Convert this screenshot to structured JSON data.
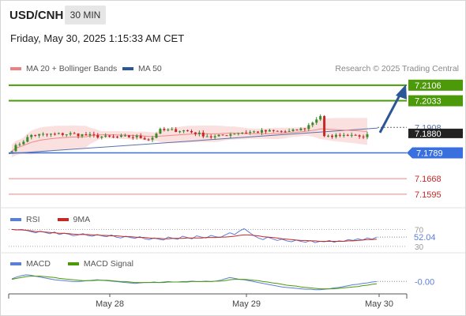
{
  "header": {
    "symbol": "USD/CNH",
    "timeframe": "30 MIN",
    "datetime": "Friday, May 30, 2025 1:15:33 AM CET",
    "research": "Research © 2025 Trading Central"
  },
  "colors": {
    "green_level": "#4c9a0a",
    "blue_level": "#3a6fe0",
    "red_level": "#f08080",
    "arrow": "#2b5797",
    "bull": "#3a8a2a",
    "bear": "#c62828",
    "bb": "#f7c6c6",
    "ma20": "#f08888",
    "ma50": "#5872a8",
    "rsi": "#5b7fd6",
    "rsi_ma": "#c62828",
    "macd": "#5b7fd6",
    "macd_signal": "#4c9a0a"
  },
  "chart_data": [
    {
      "type": "candlestick",
      "legend": [
        {
          "name": "MA 20 + Bollinger Bands",
          "color": "#f08080"
        },
        {
          "name": "MA 50",
          "color": "#2b5797"
        }
      ],
      "x_ticks": [
        "May 28",
        "May 29",
        "May 30"
      ],
      "ylim": [
        7.155,
        7.2135
      ],
      "levels": [
        {
          "value": 7.2106,
          "label": "7.2106",
          "kind": "resistance"
        },
        {
          "value": 7.2033,
          "label": "7.2033",
          "kind": "resistance"
        },
        {
          "value": 7.1908,
          "label": "7.1908",
          "kind": "pivot"
        },
        {
          "value": 7.1789,
          "label": "7.1789",
          "kind": "pivot-support"
        },
        {
          "value": 7.1668,
          "label": "7.1668",
          "kind": "support"
        },
        {
          "value": 7.1595,
          "label": "7.1595",
          "kind": "support"
        }
      ],
      "last_price": 7.188,
      "last_price_label": "7.1880",
      "forecast_target": 7.2106,
      "ma50_start": 7.1785,
      "ma50_end": 7.1905
    },
    {
      "type": "line",
      "panel": "RSI",
      "series": [
        {
          "name": "RSI",
          "color": "#5b7fd6",
          "values": [
            70,
            69,
            70,
            68,
            65,
            62,
            66,
            63,
            60,
            64,
            58,
            61,
            59,
            55,
            57,
            60,
            56,
            54,
            58,
            55,
            53,
            57,
            52,
            50,
            54,
            51,
            49,
            53,
            48,
            46,
            50,
            47,
            45,
            52,
            49,
            47,
            54,
            51,
            48,
            55,
            52,
            50,
            56,
            53,
            51,
            57,
            62,
            58,
            66,
            72,
            64,
            56,
            50,
            46,
            52,
            48,
            44,
            47,
            43,
            41,
            45,
            42,
            40,
            44,
            39,
            42,
            41,
            44,
            40,
            43,
            42,
            46,
            44,
            48,
            45,
            50,
            47,
            52
          ]
        },
        {
          "name": "9MA",
          "color": "#c62828",
          "values": [
            70,
            69,
            69,
            68,
            67,
            65,
            65,
            64,
            63,
            62,
            61,
            61,
            60,
            59,
            58,
            58,
            58,
            57,
            57,
            56,
            56,
            55,
            55,
            54,
            53,
            53,
            52,
            51,
            51,
            50,
            49,
            49,
            48,
            48,
            49,
            49,
            49,
            50,
            50,
            50,
            50,
            51,
            51,
            51,
            52,
            52,
            53,
            54,
            56,
            57,
            57,
            56,
            55,
            53,
            52,
            51,
            50,
            48,
            47,
            46,
            45,
            44,
            44,
            43,
            43,
            42,
            42,
            42,
            42,
            42,
            42,
            43,
            43,
            44,
            45,
            46,
            46,
            47
          ]
        }
      ],
      "reference_lines": [
        70,
        30
      ],
      "last_value_label": "52.04",
      "ylim": [
        28,
        82
      ]
    },
    {
      "type": "line",
      "panel": "MACD",
      "series": [
        {
          "name": "MACD",
          "color": "#5b7fd6",
          "values": [
            0.0004,
            0.0008,
            0.0011,
            0.0013,
            0.0012,
            0.001,
            0.0008,
            0.0006,
            0.0004,
            0.0002,
            0.0001,
            0.0,
            -0.0001,
            -0.0002,
            -0.0002,
            -0.0001,
            0.0,
            0.0001,
            0.0002,
            0.0001,
            0.0,
            -0.0001,
            -0.0002,
            -0.0003,
            -0.0004,
            -0.0005,
            -0.0006,
            -0.0005,
            -0.0004,
            -0.0004,
            -0.0003,
            -0.0004,
            -0.0003,
            -0.0002,
            -0.0003,
            -0.0003,
            -0.0002,
            -0.0002,
            -0.0001,
            -0.0002,
            -0.0002,
            -0.0001,
            -0.0002,
            -0.0001,
            0.0001,
            0.0004,
            0.0007,
            0.0005,
            0.0003,
            0.0002,
            0.0,
            -0.0002,
            -0.0004,
            -0.0006,
            -0.0008,
            -0.001,
            -0.0012,
            -0.0014,
            -0.0015,
            -0.0016,
            -0.0017,
            -0.0018,
            -0.0019,
            -0.0019,
            -0.002,
            -0.002,
            -0.0019,
            -0.0018,
            -0.0016,
            -0.0015,
            -0.0013,
            -0.0011,
            -0.0009,
            -0.0008,
            -0.0006,
            -0.0005,
            -0.0003,
            -0.0002
          ]
        },
        {
          "name": "MACD Signal",
          "color": "#4c9a0a",
          "values": [
            0.0003,
            0.0005,
            0.0007,
            0.0009,
            0.001,
            0.001,
            0.001,
            0.0009,
            0.0008,
            0.0007,
            0.0005,
            0.0004,
            0.0003,
            0.0002,
            0.0001,
            0.0,
            0.0,
            0.0,
            0.0001,
            0.0001,
            0.0001,
            0.0,
            -0.0001,
            -0.0002,
            -0.0002,
            -0.0003,
            -0.0004,
            -0.0004,
            -0.0004,
            -0.0004,
            -0.0004,
            -0.0004,
            -0.0004,
            -0.0003,
            -0.0003,
            -0.0003,
            -0.0003,
            -0.0003,
            -0.0002,
            -0.0002,
            -0.0002,
            -0.0002,
            -0.0002,
            -0.0001,
            -0.0001,
            0.0,
            0.0002,
            0.0003,
            0.0003,
            0.0003,
            0.0002,
            0.0001,
            0.0,
            -0.0002,
            -0.0003,
            -0.0005,
            -0.0006,
            -0.0008,
            -0.001,
            -0.0011,
            -0.0012,
            -0.0014,
            -0.0015,
            -0.0016,
            -0.0017,
            -0.0018,
            -0.0018,
            -0.0018,
            -0.0018,
            -0.0017,
            -0.0016,
            -0.0015,
            -0.0014,
            -0.0013,
            -0.0011,
            -0.001,
            -0.0008,
            -0.0007
          ]
        }
      ],
      "last_value_label": "-0.00",
      "ylim": [
        -0.0024,
        0.0018
      ]
    }
  ]
}
